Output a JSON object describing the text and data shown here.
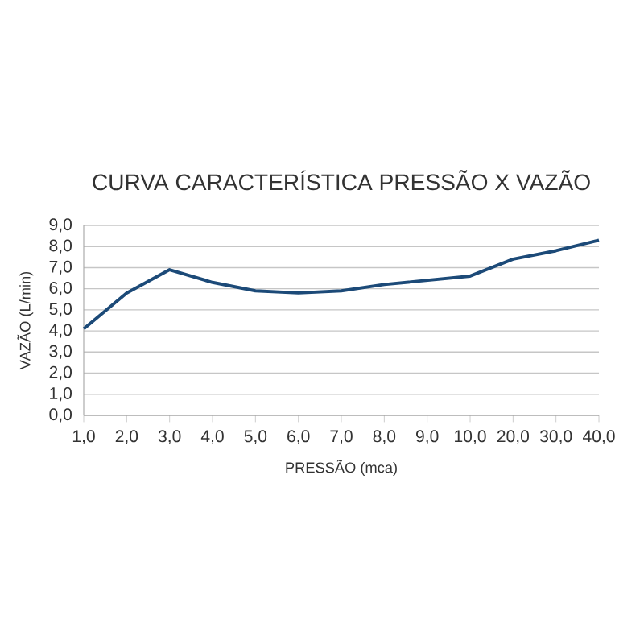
{
  "chart_data": {
    "type": "line",
    "title": "CURVA CARACTERÍSTICA PRESSÃO X VAZÃO",
    "xlabel": "PRESSÃO (mca)",
    "ylabel": "VAZÃO (L/min)",
    "categories": [
      "1,0",
      "2,0",
      "3,0",
      "4,0",
      "5,0",
      "6,0",
      "7,0",
      "8,0",
      "9,0",
      "10,0",
      "20,0",
      "30,0",
      "40,0"
    ],
    "series": [
      {
        "color": "#1c4a78",
        "values": [
          4.1,
          5.8,
          6.9,
          6.3,
          5.9,
          5.8,
          5.9,
          6.2,
          6.4,
          6.6,
          7.4,
          7.8,
          8.3
        ]
      }
    ],
    "ylim": [
      0,
      9
    ],
    "yticks": [
      {
        "value": 0,
        "label": "0,0"
      },
      {
        "value": 1,
        "label": "1,0"
      },
      {
        "value": 2,
        "label": "2,0"
      },
      {
        "value": 3,
        "label": "3,0"
      },
      {
        "value": 4,
        "label": "4,0"
      },
      {
        "value": 5,
        "label": "5,0"
      },
      {
        "value": 6,
        "label": "6,0"
      },
      {
        "value": 7,
        "label": "7,0"
      },
      {
        "value": 8,
        "label": "8,0"
      },
      {
        "value": 9,
        "label": "9,0"
      }
    ],
    "grid": "y",
    "marker": "none",
    "line_style": "solid"
  }
}
